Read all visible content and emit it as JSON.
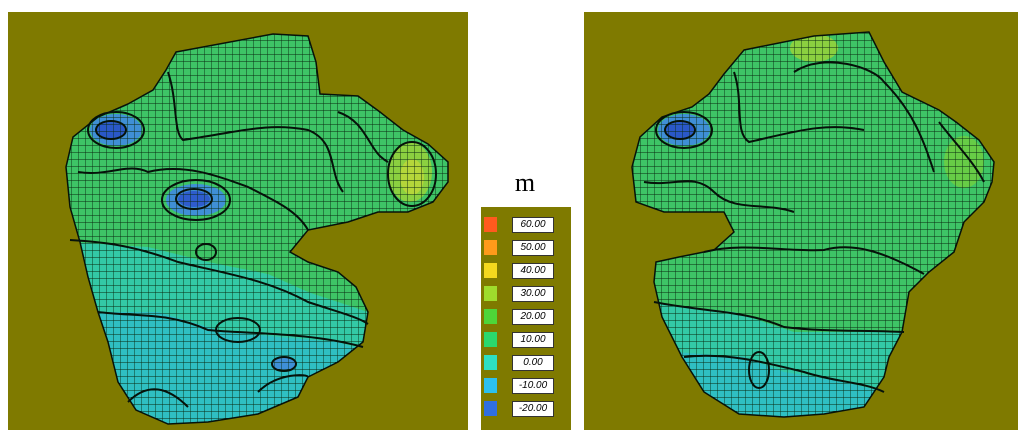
{
  "legend": {
    "unit": "m",
    "background": "#7f7a00",
    "items": [
      {
        "label": "60.00",
        "color": "#ff5a1e"
      },
      {
        "label": "50.00",
        "color": "#ff9a1a"
      },
      {
        "label": "40.00",
        "color": "#f4d81e"
      },
      {
        "label": "30.00",
        "color": "#9fdc2c"
      },
      {
        "label": "20.00",
        "color": "#4ed638"
      },
      {
        "label": "10.00",
        "color": "#2bd86c"
      },
      {
        "label": "0.00",
        "color": "#2ee0c2"
      },
      {
        "label": "-10.00",
        "color": "#2cc0ee"
      },
      {
        "label": "-20.00",
        "color": "#2f6fe2"
      }
    ]
  },
  "maps": [
    {
      "name": "left-contour-map"
    },
    {
      "name": "right-contour-map"
    }
  ]
}
